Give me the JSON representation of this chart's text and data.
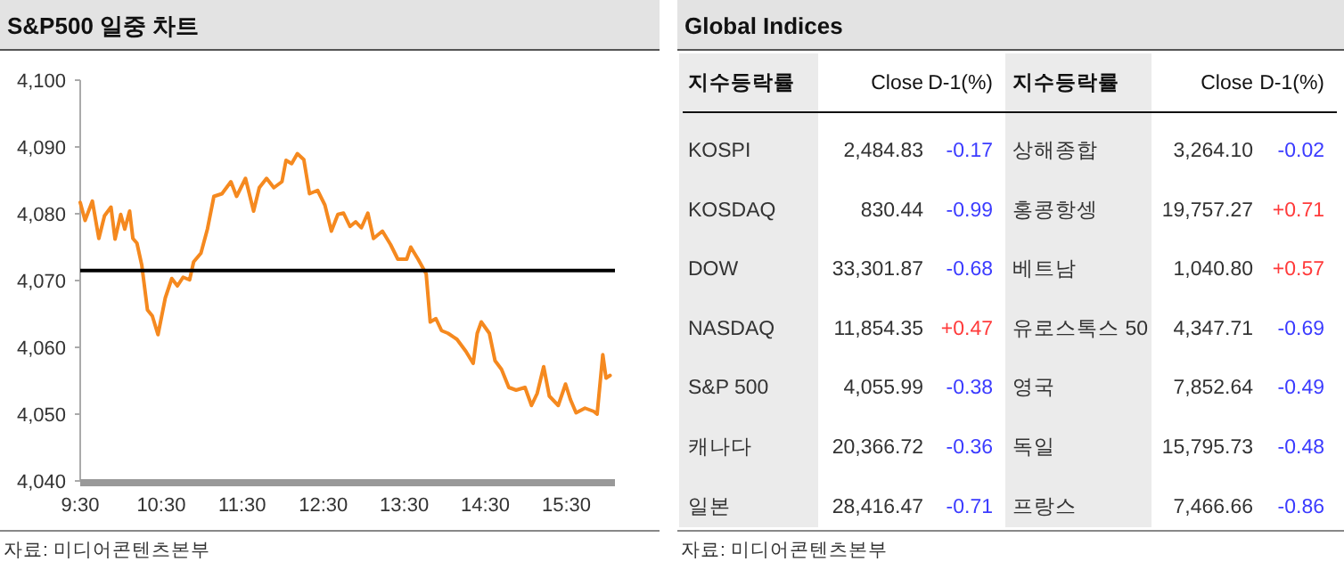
{
  "chart_data": [
    {
      "type": "line",
      "title": "S&P500 일중 차트",
      "x": [
        9.5,
        9.56,
        9.65,
        9.73,
        9.8,
        9.88,
        9.93,
        10,
        10.05,
        10.11,
        10.15,
        10.2,
        10.26,
        10.33,
        10.39,
        10.46,
        10.55,
        10.63,
        10.7,
        10.77,
        10.85,
        10.9,
        10.99,
        11.07,
        11.15,
        11.25,
        11.36,
        11.43,
        11.54,
        11.64,
        11.71,
        11.8,
        11.89,
        11.99,
        12.04,
        12.11,
        12.18,
        12.26,
        12.33,
        12.43,
        12.52,
        12.6,
        12.68,
        12.75,
        12.83,
        12.9,
        12.97,
        13.05,
        13.12,
        13.23,
        13.33,
        13.42,
        13.53,
        13.58,
        13.67,
        13.77,
        13.82,
        13.89,
        13.96,
        14.04,
        14.15,
        14.26,
        14.35,
        14.4,
        14.45,
        14.55,
        14.62,
        14.7,
        14.79,
        14.88,
        14.99,
        15.07,
        15.14,
        15.22,
        15.29,
        15.4,
        15.49,
        15.55,
        15.62,
        15.73,
        15.84,
        15.88,
        15.95,
        15.99,
        16.04
      ],
      "series": [
        {
          "color": "#f5891f",
          "values": [
            4081.7,
            4079,
            4081.9,
            4076.3,
            4079.7,
            4081,
            4076.2,
            4079.9,
            4077.7,
            4080.4,
            4076.3,
            4075.6,
            4072.3,
            4065.6,
            4064.7,
            4061.9,
            4067.4,
            4070.3,
            4069.2,
            4070.5,
            4070.1,
            4072.8,
            4074.1,
            4077.7,
            4082.6,
            4083,
            4084.8,
            4082.6,
            4085.3,
            4080.4,
            4083.9,
            4085.3,
            4083.9,
            4084.8,
            4088,
            4087.5,
            4089,
            4088.1,
            4083,
            4083.5,
            4081.3,
            4077.4,
            4079.9,
            4080.1,
            4078.1,
            4078.8,
            4077.9,
            4080.1,
            4076.3,
            4077.4,
            4075.4,
            4073.2,
            4073.2,
            4075,
            4073.2,
            4071,
            4063.8,
            4064.3,
            4062.5,
            4062.1,
            4061.2,
            4059.4,
            4057.6,
            4062.1,
            4063.8,
            4062.1,
            4058,
            4056.7,
            4054,
            4053.6,
            4054,
            4051.3,
            4053.1,
            4057.1,
            4052.7,
            4051.3,
            4054.5,
            4052.2,
            4050.2,
            4050.9,
            4050.4,
            4050,
            4058.9,
            4055.4,
            4055.8
          ]
        }
      ],
      "xlim": [
        9.5,
        16.1
      ],
      "xticks": [
        {
          "value": 9.5,
          "label": "9:30"
        },
        {
          "value": 10.5,
          "label": "10:30"
        },
        {
          "value": 11.5,
          "label": "11:30"
        },
        {
          "value": 12.5,
          "label": "12:30"
        },
        {
          "value": 13.5,
          "label": "13:30"
        },
        {
          "value": 14.5,
          "label": "14:30"
        },
        {
          "value": 15.5,
          "label": "15:30"
        }
      ],
      "ylim": [
        4040,
        4100
      ],
      "yticks": [
        {
          "value": 4040,
          "label": "4,040"
        },
        {
          "value": 4050,
          "label": "4,050"
        },
        {
          "value": 4060,
          "label": "4,060"
        },
        {
          "value": 4070,
          "label": "4,070"
        },
        {
          "value": 4080,
          "label": "4,080"
        },
        {
          "value": 4090,
          "label": "4,090"
        },
        {
          "value": 4100,
          "label": "4,100"
        }
      ],
      "ref_lines": [
        {
          "axis": "y",
          "value": 4071.5,
          "color": "#000000"
        }
      ],
      "grid": false,
      "annotations": [
        "자료: 미디어콘텐츠본부"
      ]
    },
    {
      "type": "other",
      "title": "Global Indices",
      "categories": [
        "지수등락률",
        "Close",
        "D-1(%)",
        "지수등락률",
        "Close",
        "D-1(%)"
      ],
      "cell_labels": [
        [
          "KOSPI",
          "2,484.83",
          "-0.17",
          "상해종합",
          "3,264.10",
          "-0.02"
        ],
        [
          "KOSDAQ",
          "830.44",
          "-0.99",
          "홍콩항셍",
          "19,757.27",
          "+0.71"
        ],
        [
          "DOW",
          "33,301.87",
          "-0.68",
          "베트남",
          "1,040.80",
          "+0.57"
        ],
        [
          "NASDAQ",
          "11,854.35",
          "+0.47",
          "유로스톡스 50",
          "4,347.71",
          "-0.69"
        ],
        [
          "S&P 500",
          "4,055.99",
          "-0.38",
          "영국",
          "7,852.64",
          "-0.49"
        ],
        [
          "캐나다",
          "20,366.72",
          "-0.36",
          "독일",
          "15,795.73",
          "-0.48"
        ],
        [
          "일본",
          "28,416.47",
          "-0.71",
          "프랑스",
          "7,466.66",
          "-0.86"
        ]
      ],
      "colors": [
        [
          null,
          null,
          "#3b3bff",
          null,
          null,
          "#3b3bff"
        ],
        [
          null,
          null,
          "#3b3bff",
          null,
          null,
          "#ff3b3b"
        ],
        [
          null,
          null,
          "#3b3bff",
          null,
          null,
          "#ff3b3b"
        ],
        [
          null,
          null,
          "#ff3b3b",
          null,
          null,
          "#3b3bff"
        ],
        [
          null,
          null,
          "#3b3bff",
          null,
          null,
          "#3b3bff"
        ],
        [
          null,
          null,
          "#3b3bff",
          null,
          null,
          "#3b3bff"
        ],
        [
          null,
          null,
          "#3b3bff",
          null,
          null,
          "#3b3bff"
        ]
      ],
      "annotations": [
        "자료: 미디어콘텐츠본부"
      ]
    }
  ]
}
